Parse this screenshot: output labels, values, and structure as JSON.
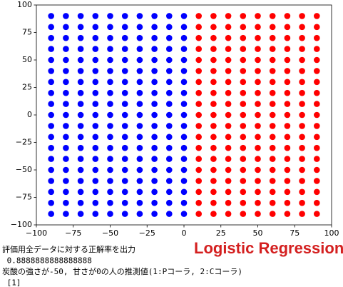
{
  "chart_data": {
    "type": "scatter",
    "annotation": "Logistic Regression",
    "xlim": [
      -100,
      100
    ],
    "ylim": [
      -100,
      100
    ],
    "xticks": [
      {
        "value": -100,
        "label": "−100"
      },
      {
        "value": -75,
        "label": "−75"
      },
      {
        "value": -50,
        "label": "−50"
      },
      {
        "value": -25,
        "label": "−25"
      },
      0,
      25,
      50,
      75,
      100
    ],
    "yticks": [
      {
        "value": -100,
        "label": "−100"
      },
      {
        "value": -75,
        "label": "−75"
      },
      {
        "value": -50,
        "label": "−50"
      },
      {
        "value": -25,
        "label": "−25"
      },
      0,
      25,
      50,
      75,
      100
    ],
    "series": [
      {
        "color": "#0000ff",
        "x": [
          -90,
          -90,
          -90,
          -90,
          -90,
          -90,
          -90,
          -90,
          -90,
          -90,
          -90,
          -90,
          -90,
          -90,
          -90,
          -90,
          -90,
          -90,
          -90,
          -80,
          -80,
          -80,
          -80,
          -80,
          -80,
          -80,
          -80,
          -80,
          -80,
          -80,
          -80,
          -80,
          -80,
          -80,
          -80,
          -80,
          -80,
          -80,
          -70,
          -70,
          -70,
          -70,
          -70,
          -70,
          -70,
          -70,
          -70,
          -70,
          -70,
          -70,
          -70,
          -70,
          -70,
          -70,
          -70,
          -70,
          -70,
          -60,
          -60,
          -60,
          -60,
          -60,
          -60,
          -60,
          -60,
          -60,
          -60,
          -60,
          -60,
          -60,
          -60,
          -60,
          -60,
          -60,
          -60,
          -60,
          -50,
          -50,
          -50,
          -50,
          -50,
          -50,
          -50,
          -50,
          -50,
          -50,
          -50,
          -50,
          -50,
          -50,
          -50,
          -50,
          -50,
          -50,
          -50,
          -40,
          -40,
          -40,
          -40,
          -40,
          -40,
          -40,
          -40,
          -40,
          -40,
          -40,
          -40,
          -40,
          -40,
          -40,
          -40,
          -40,
          -40,
          -40,
          -30,
          -30,
          -30,
          -30,
          -30,
          -30,
          -30,
          -30,
          -30,
          -30,
          -30,
          -30,
          -30,
          -30,
          -30,
          -30,
          -30,
          -30,
          -30,
          -20,
          -20,
          -20,
          -20,
          -20,
          -20,
          -20,
          -20,
          -20,
          -20,
          -20,
          -20,
          -20,
          -20,
          -20,
          -20,
          -20,
          -20,
          -20,
          -10,
          -10,
          -10,
          -10,
          -10,
          -10,
          -10,
          -10,
          -10,
          -10,
          -10,
          -10,
          -10,
          -10,
          -10,
          -10,
          -10,
          -10,
          -10,
          0,
          0,
          0,
          0,
          0,
          0,
          0,
          0,
          0,
          0,
          0,
          0,
          0,
          0,
          0,
          0,
          0,
          0,
          0
        ],
        "values": [
          -90,
          -80,
          -70,
          -60,
          -50,
          -40,
          -30,
          -20,
          -10,
          0,
          10,
          20,
          30,
          40,
          50,
          60,
          70,
          80,
          90,
          -90,
          -80,
          -70,
          -60,
          -50,
          -40,
          -30,
          -20,
          -10,
          0,
          10,
          20,
          30,
          40,
          50,
          60,
          70,
          80,
          90,
          -90,
          -80,
          -70,
          -60,
          -50,
          -40,
          -30,
          -20,
          -10,
          0,
          10,
          20,
          30,
          40,
          50,
          60,
          70,
          80,
          90,
          -90,
          -80,
          -70,
          -60,
          -50,
          -40,
          -30,
          -20,
          -10,
          0,
          10,
          20,
          30,
          40,
          50,
          60,
          70,
          80,
          90,
          -90,
          -80,
          -70,
          -60,
          -50,
          -40,
          -30,
          -20,
          -10,
          0,
          10,
          20,
          30,
          40,
          50,
          60,
          70,
          80,
          90,
          -90,
          -80,
          -70,
          -60,
          -50,
          -40,
          -30,
          -20,
          -10,
          0,
          10,
          20,
          30,
          40,
          50,
          60,
          70,
          80,
          90,
          -90,
          -80,
          -70,
          -60,
          -50,
          -40,
          -30,
          -20,
          -10,
          0,
          10,
          20,
          30,
          40,
          50,
          60,
          70,
          80,
          90,
          -90,
          -80,
          -70,
          -60,
          -50,
          -40,
          -30,
          -20,
          -10,
          0,
          10,
          20,
          30,
          40,
          50,
          60,
          70,
          80,
          90,
          -90,
          -80,
          -70,
          -60,
          -50,
          -40,
          -30,
          -20,
          -10,
          0,
          10,
          20,
          30,
          40,
          50,
          60,
          70,
          80,
          90,
          -90,
          -80,
          -70,
          -60,
          -50,
          -40,
          -30,
          -20,
          -10,
          0,
          10,
          20,
          30,
          40,
          50,
          60,
          70,
          80,
          90
        ]
      },
      {
        "color": "#ff0000",
        "x": [
          10,
          10,
          10,
          10,
          10,
          10,
          10,
          10,
          10,
          10,
          10,
          10,
          10,
          10,
          10,
          10,
          10,
          10,
          10,
          20,
          20,
          20,
          20,
          20,
          20,
          20,
          20,
          20,
          20,
          20,
          20,
          20,
          20,
          20,
          20,
          20,
          20,
          20,
          30,
          30,
          30,
          30,
          30,
          30,
          30,
          30,
          30,
          30,
          30,
          30,
          30,
          30,
          30,
          30,
          30,
          30,
          30,
          40,
          40,
          40,
          40,
          40,
          40,
          40,
          40,
          40,
          40,
          40,
          40,
          40,
          40,
          40,
          40,
          40,
          40,
          40,
          50,
          50,
          50,
          50,
          50,
          50,
          50,
          50,
          50,
          50,
          50,
          50,
          50,
          50,
          50,
          50,
          50,
          50,
          50,
          60,
          60,
          60,
          60,
          60,
          60,
          60,
          60,
          60,
          60,
          60,
          60,
          60,
          60,
          60,
          60,
          60,
          60,
          60,
          70,
          70,
          70,
          70,
          70,
          70,
          70,
          70,
          70,
          70,
          70,
          70,
          70,
          70,
          70,
          70,
          70,
          70,
          70,
          80,
          80,
          80,
          80,
          80,
          80,
          80,
          80,
          80,
          80,
          80,
          80,
          80,
          80,
          80,
          80,
          80,
          80,
          80,
          90,
          90,
          90,
          90,
          90,
          90,
          90,
          90,
          90,
          90,
          90,
          90,
          90,
          90,
          90,
          90,
          90,
          90,
          90
        ],
        "values": [
          -90,
          -80,
          -70,
          -60,
          -50,
          -40,
          -30,
          -20,
          -10,
          0,
          10,
          20,
          30,
          40,
          50,
          60,
          70,
          80,
          90,
          -90,
          -80,
          -70,
          -60,
          -50,
          -40,
          -30,
          -20,
          -10,
          0,
          10,
          20,
          30,
          40,
          50,
          60,
          70,
          80,
          90,
          -90,
          -80,
          -70,
          -60,
          -50,
          -40,
          -30,
          -20,
          -10,
          0,
          10,
          20,
          30,
          40,
          50,
          60,
          70,
          80,
          90,
          -90,
          -80,
          -70,
          -60,
          -50,
          -40,
          -30,
          -20,
          -10,
          0,
          10,
          20,
          30,
          40,
          50,
          60,
          70,
          80,
          90,
          -90,
          -80,
          -70,
          -60,
          -50,
          -40,
          -30,
          -20,
          -10,
          0,
          10,
          20,
          30,
          40,
          50,
          60,
          70,
          80,
          90,
          -90,
          -80,
          -70,
          -60,
          -50,
          -40,
          -30,
          -20,
          -10,
          0,
          10,
          20,
          30,
          40,
          50,
          60,
          70,
          80,
          90,
          -90,
          -80,
          -70,
          -60,
          -50,
          -40,
          -30,
          -20,
          -10,
          0,
          10,
          20,
          30,
          40,
          50,
          60,
          70,
          80,
          90,
          -90,
          -80,
          -70,
          -60,
          -50,
          -40,
          -30,
          -20,
          -10,
          0,
          10,
          20,
          30,
          40,
          50,
          60,
          70,
          80,
          90,
          -90,
          -80,
          -70,
          -60,
          -50,
          -40,
          -30,
          -20,
          -10,
          0,
          10,
          20,
          30,
          40,
          50,
          60,
          70,
          80,
          90
        ]
      }
    ]
  },
  "output": {
    "lines": [
      "評価用全データに対する正解率を出力",
      " 0.8888888888888888",
      "炭酸の強さが-50, 甘さが0の人の推測値(1:Pコーラ, 2:Cコーラ)",
      " [1]"
    ]
  }
}
